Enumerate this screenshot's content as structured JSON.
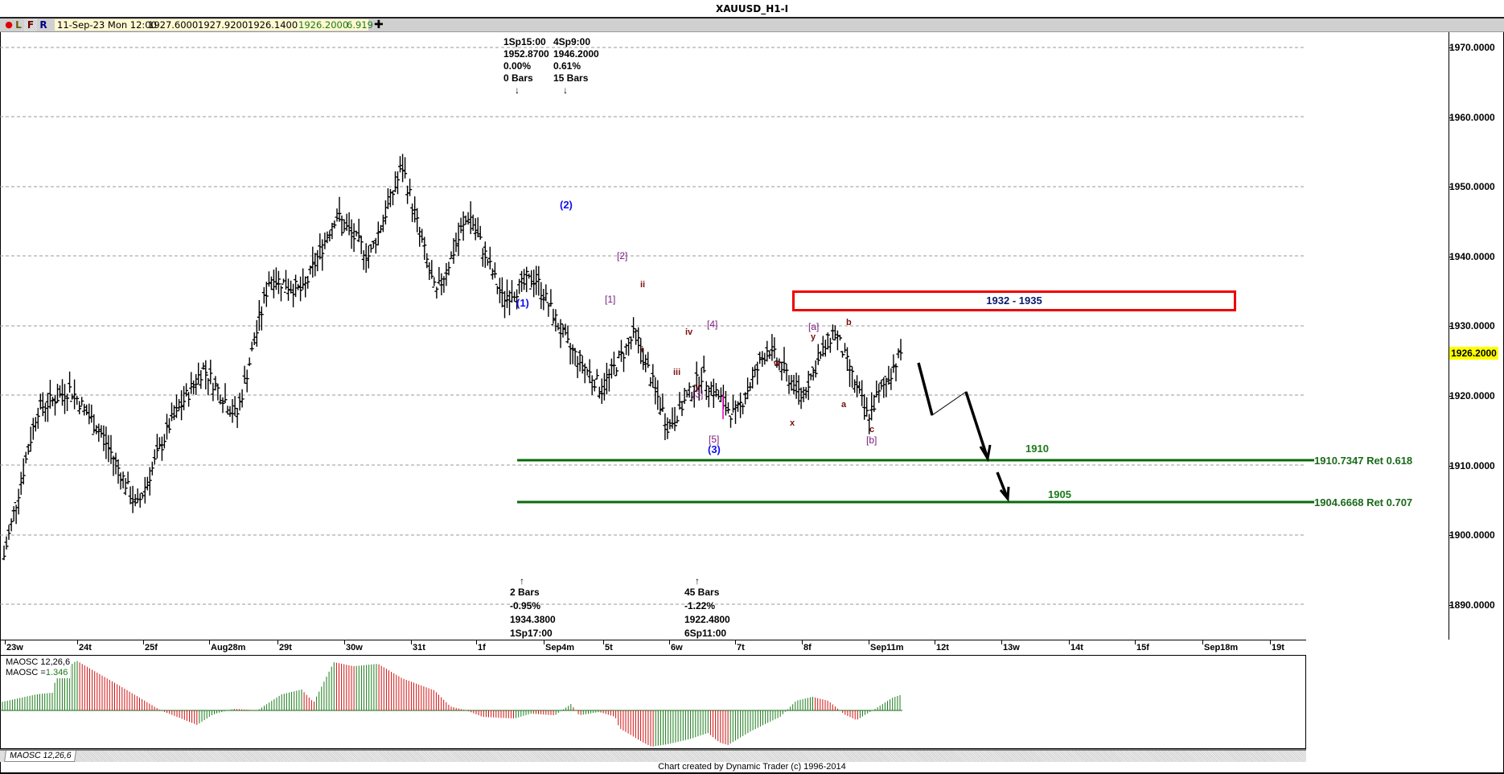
{
  "window": {
    "title": "XAUUSD_H1-I"
  },
  "toolbar": {
    "record_dot": "●",
    "btn_L": "L",
    "btn_F": "F",
    "btn_R": "R",
    "info": {
      "datetime": "11-Sep-23 Mon 12:00",
      "open": "1927.6000",
      "high": "1927.9200",
      "low": "1926.1400",
      "close": "1926.2000",
      "range": "6.919"
    },
    "add_icon": "✚"
  },
  "colors": {
    "up_bar": "#1a7a1a",
    "down_bar": "#d01010",
    "zone_border": "#ee0000",
    "level_line": "#0a6a0a",
    "last_price_bg": "#ffff00",
    "wave_primary": "#1010ee",
    "wave_minor": "#7a1a7a",
    "wave_minute": "#7a0f0f"
  },
  "annotations": {
    "top": [
      {
        "time": "1Sp15:00",
        "price": "1952.8700",
        "pct": "0.00%",
        "bars": "0 Bars",
        "arrow": "↓"
      },
      {
        "time": "4Sp9:00",
        "price": "1946.2000",
        "pct": "0.61%",
        "bars": "15 Bars",
        "arrow": "↓"
      }
    ],
    "bottom": [
      {
        "arrow": "↑",
        "bars": "2 Bars",
        "pct": "-0.95%",
        "price": "1934.3800",
        "time": "1Sp17:00"
      },
      {
        "arrow": "↑",
        "bars": "45 Bars",
        "pct": "-1.22%",
        "price": "1922.4800",
        "time": "6Sp11:00"
      }
    ],
    "zone_label": "1932 - 1935",
    "level_1910": "1910",
    "level_1905": "1905",
    "ret_1": "1910.7347 Ret 0.618",
    "ret_2": "1904.6668 Ret 0.707"
  },
  "waves": {
    "w1": "(1)",
    "w2": "(2)",
    "w3": "(3)",
    "m1": "[1]",
    "m2": "[2]",
    "m3": "[3]",
    "m4": "[4]",
    "m5": "[5]",
    "i": "i",
    "ii": "ii",
    "iii": "iii",
    "iv": "iv",
    "v": "v",
    "w": "w",
    "x": "x",
    "y": "y",
    "ma": "[a]",
    "mb": "[b]",
    "a": "a",
    "b": "b",
    "c": "c"
  },
  "chart_data": {
    "type": "bar",
    "title": "XAUUSD_H1-I",
    "subtype": "OHLC bar chart (H1) with Elliott wave annotations and MAOSC oscillator",
    "xlabel": "",
    "ylabel": "",
    "ylim": [
      1885,
      1973
    ],
    "y_ticks": [
      "1970.0000",
      "1960.0000",
      "1950.0000",
      "1940.0000",
      "1930.0000",
      "1920.0000",
      "1910.0000",
      "1900.0000",
      "1890.0000"
    ],
    "x_ticks": [
      "23w",
      "24t",
      "25f",
      "Aug28m",
      "29t",
      "30w",
      "31t",
      "1f",
      "Sep4m",
      "5t",
      "6w",
      "7t",
      "8f",
      "Sep11m",
      "12t",
      "13w",
      "14t",
      "15f",
      "Sep18m",
      "19t"
    ],
    "grid": true,
    "last_price": "1926.2000",
    "approx_price_path": [
      {
        "label": "23w",
        "close": 1897
      },
      {
        "label": "24t",
        "close": 1918
      },
      {
        "label": "24t-mid",
        "close": 1921
      },
      {
        "label": "25f",
        "close": 1914
      },
      {
        "label": "25f-low",
        "close": 1904
      },
      {
        "label": "Aug28m",
        "close": 1916
      },
      {
        "label": "29t",
        "close": 1924
      },
      {
        "label": "29t-late",
        "close": 1917
      },
      {
        "label": "30w",
        "close": 1937
      },
      {
        "label": "30w-late",
        "close": 1935
      },
      {
        "label": "31t",
        "close": 1946
      },
      {
        "label": "1f",
        "close": 1940
      },
      {
        "label": "1f-high",
        "close": 1952.87
      },
      {
        "label": "(1)",
        "close": 1934.38
      },
      {
        "label": "(2)",
        "close": 1946.2
      },
      {
        "label": "[1]",
        "close": 1934
      },
      {
        "label": "[2]",
        "close": 1937
      },
      {
        "label": "i/ii",
        "close": 1927
      },
      {
        "label": "[3]",
        "close": 1921
      },
      {
        "label": "[4]",
        "close": 1929
      },
      {
        "label": "(3)",
        "close": 1915.5
      },
      {
        "label": "w",
        "close": 1923
      },
      {
        "label": "x",
        "close": 1917
      },
      {
        "label": "y/[a]",
        "close": 1927
      },
      {
        "label": "a",
        "close": 1920
      },
      {
        "label": "b",
        "close": 1929.5
      },
      {
        "label": "c/[b]",
        "close": 1917
      },
      {
        "label": "Sep11m",
        "close": 1926.2
      }
    ],
    "levels": [
      {
        "name": "Ret 0.618",
        "value": 1910.7347
      },
      {
        "name": "Ret 0.707",
        "value": 1904.6668
      }
    ],
    "zone": {
      "low": 1932,
      "high": 1935
    },
    "oscillator": {
      "name": "MAOSC 12,26,6",
      "current_value": "1.346",
      "legend": [
        "MAOSC 12,26,6",
        "MAOSC = 1.346"
      ]
    }
  },
  "legend": {
    "osc_name": "MAOSC 12,26,6",
    "osc_eq": "MAOSC =",
    "osc_val": "1.346"
  },
  "tabs": [
    {
      "label": "MAOSC 12,26,6"
    }
  ],
  "footer": {
    "credits": "Chart created by Dynamic Trader  (c) 1996-2014"
  }
}
